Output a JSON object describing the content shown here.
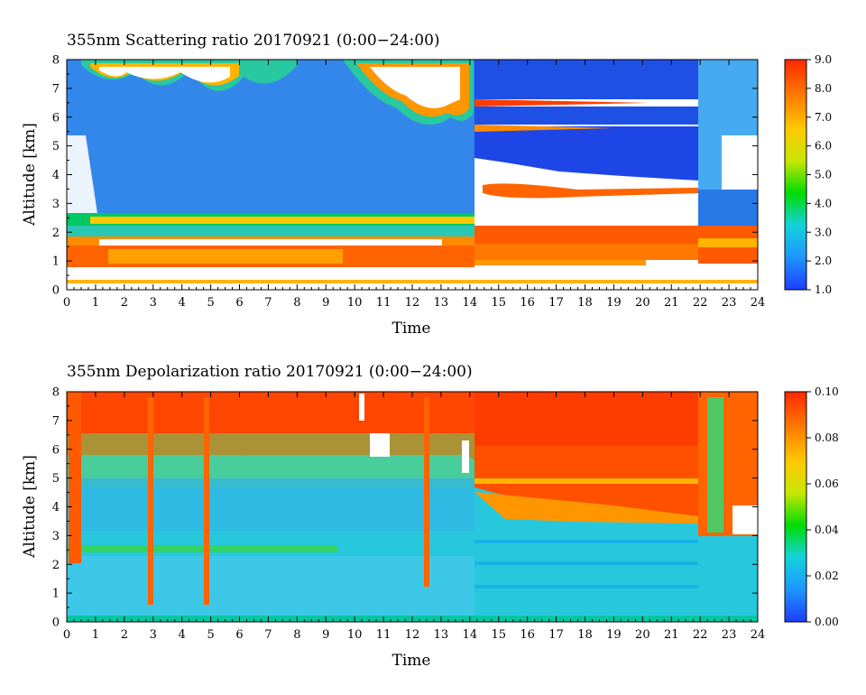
{
  "chart_data": [
    {
      "type": "heatmap",
      "title": "355nm Scattering ratio  20170921 (0:00−24:00)",
      "xlabel": "Time",
      "ylabel": "Altitude [km]",
      "xlim": [
        0,
        24
      ],
      "ylim": [
        0,
        8
      ],
      "x_ticks": [
        "0",
        "1",
        "2",
        "3",
        "4",
        "5",
        "6",
        "7",
        "8",
        "9",
        "10",
        "11",
        "12",
        "13",
        "14",
        "15",
        "16",
        "17",
        "18",
        "19",
        "20",
        "21",
        "22",
        "23",
        "24"
      ],
      "y_ticks": [
        "0",
        "1",
        "2",
        "3",
        "4",
        "5",
        "6",
        "7",
        "8"
      ],
      "colorbar": {
        "range": [
          1.0,
          9.0
        ],
        "tick_labels": [
          "1.0",
          "2.0",
          "3.0",
          "4.0",
          "5.0",
          "6.0",
          "7.0",
          "8.0",
          "9.0"
        ],
        "colors": [
          "#1e3cff",
          "#1e96ff",
          "#14d2dc",
          "#00dc00",
          "#c8e600",
          "#ffc800",
          "#ff7800",
          "#ff2800"
        ]
      },
      "features": {
        "boundary_layer_top_km": 2.3,
        "dense_cloud_layer_km": [
          1.0,
          2.0
        ],
        "elevated_layers_km": [
          3.4,
          5.6,
          6.4
        ],
        "clear_gap_hours": [
          21.9,
          22.5
        ]
      }
    },
    {
      "type": "heatmap",
      "title": "355nm Depolarization ratio  20170921 (0:00−24:00)",
      "xlabel": "Time",
      "ylabel": "Altitude [km]",
      "xlim": [
        0,
        24
      ],
      "ylim": [
        0,
        8
      ],
      "x_ticks": [
        "0",
        "1",
        "2",
        "3",
        "4",
        "5",
        "6",
        "7",
        "8",
        "9",
        "10",
        "11",
        "12",
        "13",
        "14",
        "15",
        "16",
        "17",
        "18",
        "19",
        "20",
        "21",
        "22",
        "23",
        "24"
      ],
      "y_ticks": [
        "0",
        "1",
        "2",
        "3",
        "4",
        "5",
        "6",
        "7",
        "8"
      ],
      "colorbar": {
        "range": [
          0.0,
          0.1
        ],
        "tick_labels": [
          "0.00",
          "0.02",
          "0.04",
          "0.06",
          "0.08",
          "0.10"
        ],
        "colors": [
          "#1e3cff",
          "#1e96ff",
          "#14d2dc",
          "#00dc00",
          "#c8e600",
          "#ffc800",
          "#ff7800",
          "#ff2800"
        ]
      },
      "features": {
        "high_depol_region_km": [
          3.5,
          8.0
        ],
        "high_depol_hours": [
          14.2,
          21.9
        ],
        "vertical_streaks_hours": [
          3.0,
          4.9,
          12.6
        ]
      }
    }
  ]
}
